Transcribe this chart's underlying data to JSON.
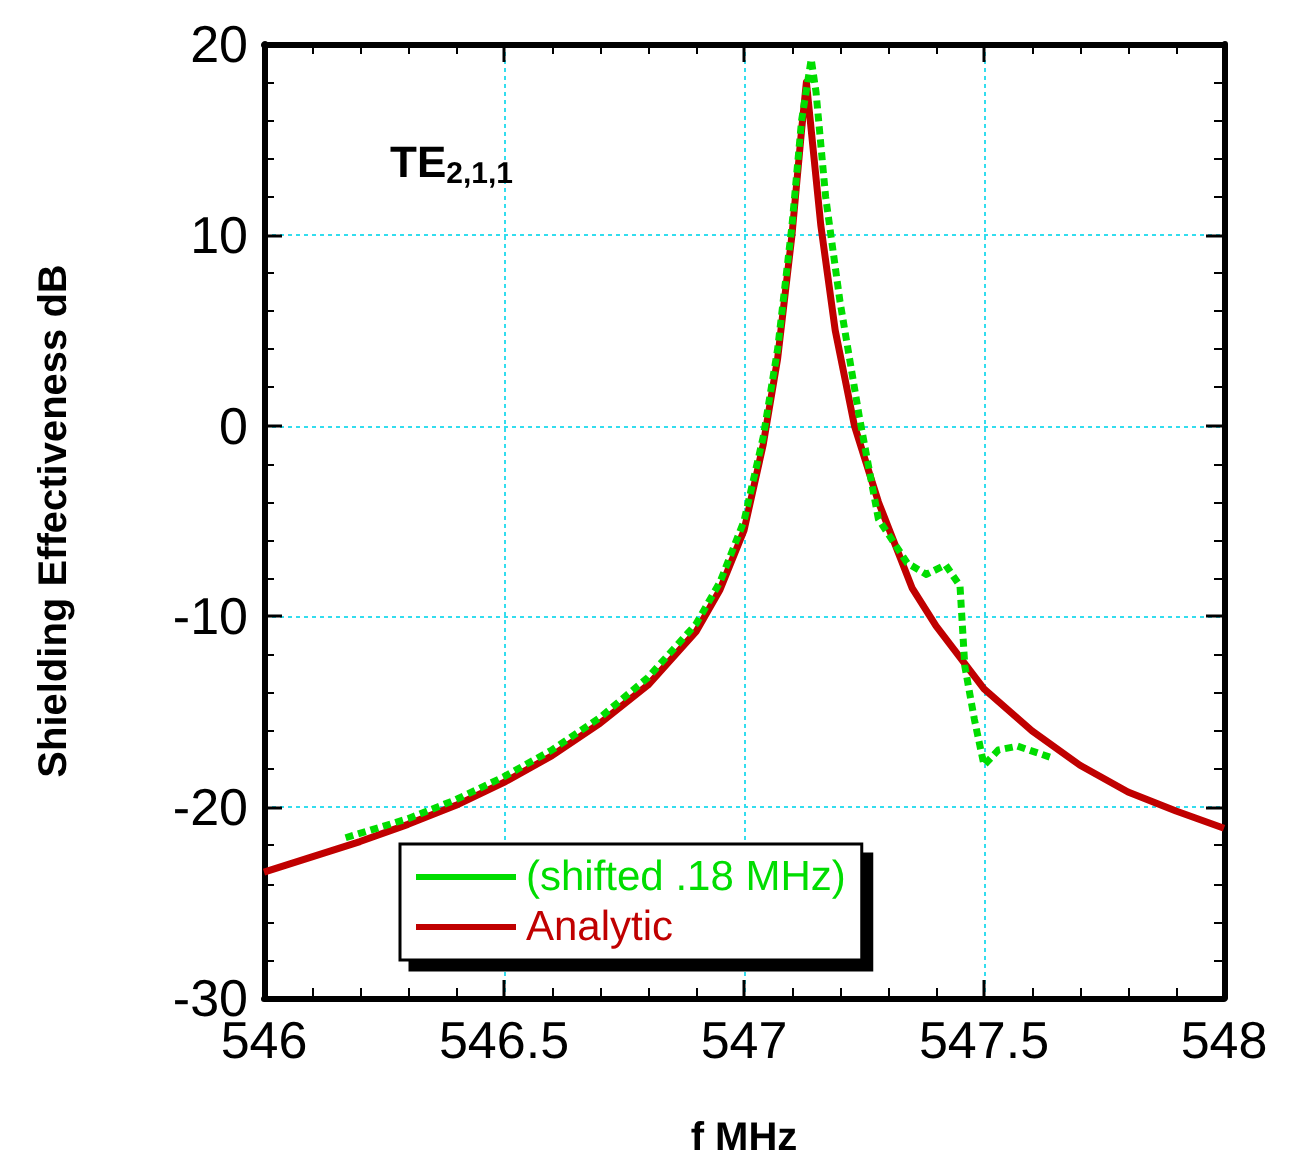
{
  "chart_data": {
    "type": "line",
    "xlabel": "f MHz",
    "ylabel": "Shielding Effectiveness dB",
    "annotations": [
      "TE$_{2,1,1}$"
    ],
    "xlim": [
      546,
      548
    ],
    "xticks": [
      546,
      546.5,
      547,
      547.5,
      548
    ],
    "ylim": [
      -30,
      20
    ],
    "yticks": [
      -30,
      -20,
      -10,
      0,
      10,
      20
    ],
    "grid": true,
    "legend": "bottom",
    "marker": "none",
    "series": [
      {
        "name": "(shifted .18 MHz)",
        "color": "#00dd00",
        "line_style": "dashed",
        "x": [
          546.17,
          546.3,
          546.4,
          546.5,
          546.6,
          546.7,
          546.8,
          546.9,
          546.95,
          547,
          547.04,
          547.07,
          547.1,
          547.12,
          547.14,
          547.15,
          547.17,
          547.2,
          547.24,
          547.28,
          547.34,
          547.38,
          547.42,
          547.45,
          547.46,
          547.48,
          547.5,
          547.53,
          547.57,
          547.64
        ],
        "values": [
          -21.6,
          -20.6,
          -19.6,
          -18.4,
          -17,
          -15.3,
          -13.2,
          -10.4,
          -8.2,
          -5,
          -0.6,
          4,
          10.5,
          16,
          19.2,
          17.5,
          12,
          6.5,
          0.5,
          -4.9,
          -7.2,
          -7.8,
          -7.3,
          -8.4,
          -12.6,
          -15.4,
          -17.8,
          -17,
          -16.8,
          -17.4
        ]
      },
      {
        "name": "Analytic",
        "color": "#c00000",
        "line_style": "solid",
        "x": [
          546,
          546.1,
          546.2,
          546.3,
          546.4,
          546.5,
          546.6,
          546.7,
          546.8,
          546.9,
          546.95,
          547,
          547.04,
          547.07,
          547.1,
          547.12,
          547.13,
          547.14,
          547.16,
          547.19,
          547.23,
          547.28,
          547.35,
          547.4,
          547.5,
          547.6,
          547.7,
          547.8,
          547.9,
          548
        ],
        "values": [
          -23.4,
          -22.6,
          -21.8,
          -20.9,
          -19.9,
          -18.7,
          -17.3,
          -15.6,
          -13.6,
          -10.8,
          -8.6,
          -5.5,
          -1,
          3.5,
          10,
          15.5,
          18,
          15.5,
          10.5,
          5,
          0,
          -4,
          -8.5,
          -10.5,
          -13.8,
          -16,
          -17.8,
          -19.2,
          -20.2,
          -21.1
        ]
      }
    ]
  }
}
